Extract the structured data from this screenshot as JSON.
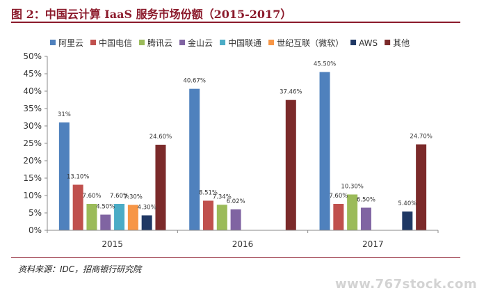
{
  "page": {
    "title": "图 2：中国云计算 IaaS 服务市场份额（2015-2017）",
    "source": "资料来源：IDC，招商银行研究院",
    "watermark": "www.767stock.com"
  },
  "chart_data": {
    "type": "bar",
    "title": "图 2：中国云计算 IaaS 服务市场份额（2015-2017）",
    "xlabel": "",
    "ylabel": "",
    "categories": [
      "2015",
      "2016",
      "2017"
    ],
    "ylim": [
      0,
      50
    ],
    "yticks": [
      0,
      5,
      10,
      15,
      20,
      25,
      30,
      35,
      40,
      45,
      50
    ],
    "ytick_labels": [
      "0%",
      "5%",
      "10%",
      "15%",
      "20%",
      "25%",
      "30%",
      "35%",
      "40%",
      "45%",
      "50%"
    ],
    "grid": false,
    "legend_position": "top",
    "series": [
      {
        "name": "阿里云",
        "color": "#4f81bd",
        "values": [
          31,
          40.67,
          45.5
        ],
        "labels": [
          "31%",
          "40.67%",
          "45.50%"
        ]
      },
      {
        "name": "中国电信",
        "color": "#c0504d",
        "values": [
          13.1,
          8.51,
          7.6
        ],
        "labels": [
          "13.10%",
          "8.51%",
          "7.60%"
        ]
      },
      {
        "name": "腾讯云",
        "color": "#9bbb59",
        "values": [
          7.6,
          7.34,
          10.3
        ],
        "labels": [
          "7.60%",
          "7.34%",
          "10.30%"
        ]
      },
      {
        "name": "金山云",
        "color": "#8064a2",
        "values": [
          4.5,
          6.02,
          6.5
        ],
        "labels": [
          "4.50%",
          "6.02%",
          "6.50%"
        ]
      },
      {
        "name": "中国联通",
        "color": "#4bacc6",
        "values": [
          7.6,
          null,
          null
        ],
        "labels": [
          "7.60%",
          "",
          ""
        ]
      },
      {
        "name": "世纪互联（微软）",
        "color": "#f79646",
        "values": [
          7.3,
          null,
          null
        ],
        "labels": [
          "7.30%",
          "",
          ""
        ]
      },
      {
        "name": "AWS",
        "color": "#1f3864",
        "values": [
          4.3,
          null,
          5.4
        ],
        "labels": [
          "4.30%",
          "",
          "5.40%"
        ]
      },
      {
        "name": "其他",
        "color": "#7b2a2a",
        "values": [
          24.6,
          37.46,
          24.7
        ],
        "labels": [
          "24.60%",
          "37.46%",
          "24.70%"
        ]
      }
    ]
  }
}
